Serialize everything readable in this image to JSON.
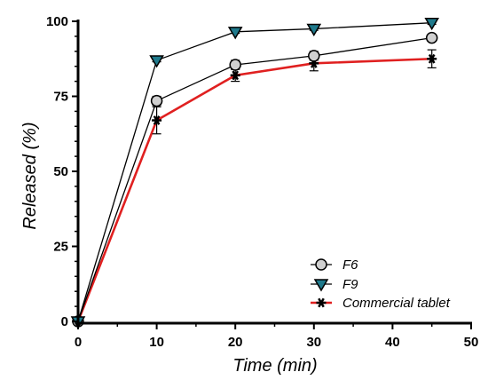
{
  "chart_data": {
    "type": "line",
    "xlabel": "Time (min)",
    "ylabel": "Released (%)",
    "xlim": [
      0,
      50
    ],
    "ylim": [
      0,
      100
    ],
    "x_ticks": [
      "0",
      "10",
      "20",
      "30",
      "40",
      "50"
    ],
    "y_ticks": [
      "0",
      "25",
      "50",
      "75",
      "100"
    ],
    "grid": false,
    "legend_position": "bottom-right",
    "series": [
      {
        "name": "F6",
        "marker": "circle",
        "color": "#000000",
        "marker_fill": "#d0d0d0",
        "points": [
          {
            "x": 0,
            "y": 0,
            "err": 0
          },
          {
            "x": 10,
            "y": 73.5,
            "err": 1.5
          },
          {
            "x": 20,
            "y": 85.5,
            "err": 1.5
          },
          {
            "x": 30,
            "y": 88.5,
            "err": 1.5
          },
          {
            "x": 45,
            "y": 94.5,
            "err": 1.0
          }
        ]
      },
      {
        "name": "F9",
        "marker": "triangle-down",
        "color": "#000000",
        "marker_fill": "#1f7a8c",
        "points": [
          {
            "x": 0,
            "y": 0,
            "err": 0
          },
          {
            "x": 10,
            "y": 87,
            "err": 0.5
          },
          {
            "x": 20,
            "y": 96.5,
            "err": 0.5
          },
          {
            "x": 30,
            "y": 97.5,
            "err": 0.5
          },
          {
            "x": 45,
            "y": 99.5,
            "err": 0.5
          }
        ]
      },
      {
        "name": "Commercial tablet",
        "marker": "asterisk",
        "color": "#e02020",
        "marker_fill": "#000000",
        "points": [
          {
            "x": 0,
            "y": 0,
            "err": 0
          },
          {
            "x": 10,
            "y": 67,
            "err": 4.5
          },
          {
            "x": 20,
            "y": 82,
            "err": 2.0
          },
          {
            "x": 30,
            "y": 86,
            "err": 2.5
          },
          {
            "x": 45,
            "y": 87.5,
            "err": 3.0
          }
        ]
      }
    ]
  }
}
